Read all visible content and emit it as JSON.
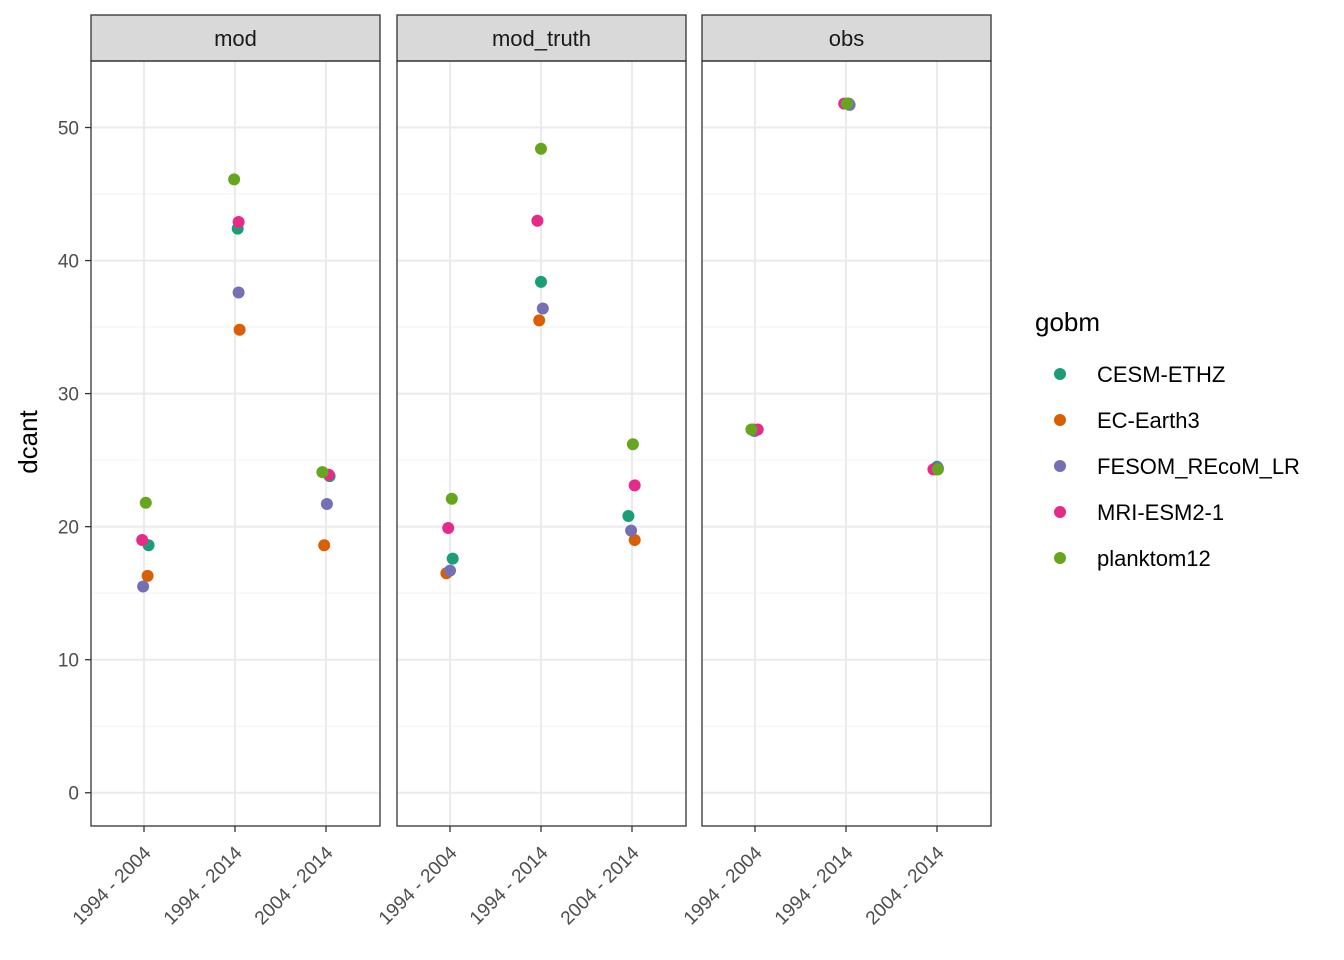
{
  "chart_data": {
    "type": "scatter",
    "facet_by": "panel",
    "panels": [
      "mod",
      "mod_truth",
      "obs"
    ],
    "categories": [
      "1994 - 2004",
      "1994 - 2014",
      "2004 - 2014"
    ],
    "xlabel": "",
    "ylabel": "dcant",
    "ylim": [
      -2.5,
      55
    ],
    "yticks": [
      0,
      10,
      20,
      30,
      40,
      50
    ],
    "grid": true,
    "legend": {
      "title": "gobm",
      "placement": "right"
    },
    "series": [
      {
        "name": "CESM-ETHZ",
        "color": "#1B9E77",
        "points": [
          {
            "panel": "mod",
            "x": "1994 - 2004",
            "y": 18.6,
            "jitter": 0.05
          },
          {
            "panel": "mod",
            "x": "1994 - 2014",
            "y": 42.4,
            "jitter": 0.03
          },
          {
            "panel": "mod",
            "x": "2004 - 2014",
            "y": 23.8,
            "jitter": 0.04
          },
          {
            "panel": "mod_truth",
            "x": "1994 - 2004",
            "y": 17.6,
            "jitter": 0.03
          },
          {
            "panel": "mod_truth",
            "x": "1994 - 2014",
            "y": 38.4,
            "jitter": 0.0
          },
          {
            "panel": "mod_truth",
            "x": "2004 - 2014",
            "y": 20.8,
            "jitter": -0.04
          },
          {
            "panel": "obs",
            "x": "1994 - 2004",
            "y": 27.2,
            "jitter": 0.0
          },
          {
            "panel": "obs",
            "x": "1994 - 2014",
            "y": 51.8,
            "jitter": 0.03
          },
          {
            "panel": "obs",
            "x": "2004 - 2014",
            "y": 24.5,
            "jitter": 0.0
          }
        ]
      },
      {
        "name": "EC-Earth3",
        "color": "#D95F02",
        "points": [
          {
            "panel": "mod",
            "x": "1994 - 2004",
            "y": 16.3,
            "jitter": 0.04
          },
          {
            "panel": "mod",
            "x": "1994 - 2014",
            "y": 34.8,
            "jitter": 0.05
          },
          {
            "panel": "mod",
            "x": "2004 - 2014",
            "y": 18.6,
            "jitter": -0.02
          },
          {
            "panel": "mod_truth",
            "x": "1994 - 2004",
            "y": 16.5,
            "jitter": -0.04
          },
          {
            "panel": "mod_truth",
            "x": "1994 - 2014",
            "y": 35.5,
            "jitter": -0.02
          },
          {
            "panel": "mod_truth",
            "x": "2004 - 2014",
            "y": 19.0,
            "jitter": 0.03
          },
          {
            "panel": "obs",
            "x": "1994 - 2004",
            "y": 27.3,
            "jitter": -0.02
          },
          {
            "panel": "obs",
            "x": "1994 - 2014",
            "y": 51.8,
            "jitter": 0.02
          },
          {
            "panel": "obs",
            "x": "2004 - 2014",
            "y": 24.3,
            "jitter": -0.01
          }
        ]
      },
      {
        "name": "FESOM_REcoM_LR",
        "color": "#7570B3",
        "points": [
          {
            "panel": "mod",
            "x": "1994 - 2004",
            "y": 15.5,
            "jitter": -0.01
          },
          {
            "panel": "mod",
            "x": "1994 - 2014",
            "y": 37.6,
            "jitter": 0.04
          },
          {
            "panel": "mod",
            "x": "2004 - 2014",
            "y": 21.7,
            "jitter": 0.01
          },
          {
            "panel": "mod_truth",
            "x": "1994 - 2004",
            "y": 16.7,
            "jitter": 0.0
          },
          {
            "panel": "mod_truth",
            "x": "1994 - 2014",
            "y": 36.4,
            "jitter": 0.02
          },
          {
            "panel": "mod_truth",
            "x": "2004 - 2014",
            "y": 19.7,
            "jitter": -0.01
          },
          {
            "panel": "obs",
            "x": "1994 - 2004",
            "y": 27.2,
            "jitter": -0.01
          },
          {
            "panel": "obs",
            "x": "1994 - 2014",
            "y": 51.7,
            "jitter": 0.04
          },
          {
            "panel": "obs",
            "x": "2004 - 2014",
            "y": 24.4,
            "jitter": 0.01
          }
        ]
      },
      {
        "name": "MRI-ESM2-1",
        "color": "#E7298A",
        "points": [
          {
            "panel": "mod",
            "x": "1994 - 2004",
            "y": 19.0,
            "jitter": -0.02
          },
          {
            "panel": "mod",
            "x": "1994 - 2014",
            "y": 42.9,
            "jitter": 0.04
          },
          {
            "panel": "mod",
            "x": "2004 - 2014",
            "y": 23.9,
            "jitter": 0.03
          },
          {
            "panel": "mod_truth",
            "x": "1994 - 2004",
            "y": 19.9,
            "jitter": -0.02
          },
          {
            "panel": "mod_truth",
            "x": "1994 - 2014",
            "y": 43.0,
            "jitter": -0.04
          },
          {
            "panel": "mod_truth",
            "x": "2004 - 2014",
            "y": 23.1,
            "jitter": 0.03
          },
          {
            "panel": "obs",
            "x": "1994 - 2004",
            "y": 27.3,
            "jitter": 0.03
          },
          {
            "panel": "obs",
            "x": "1994 - 2014",
            "y": 51.8,
            "jitter": -0.02
          },
          {
            "panel": "obs",
            "x": "2004 - 2014",
            "y": 24.3,
            "jitter": -0.04
          }
        ]
      },
      {
        "name": "planktom12",
        "color": "#66A61E",
        "points": [
          {
            "panel": "mod",
            "x": "1994 - 2004",
            "y": 21.8,
            "jitter": 0.02
          },
          {
            "panel": "mod",
            "x": "1994 - 2014",
            "y": 46.1,
            "jitter": -0.01
          },
          {
            "panel": "mod",
            "x": "2004 - 2014",
            "y": 24.1,
            "jitter": -0.04
          },
          {
            "panel": "mod_truth",
            "x": "1994 - 2004",
            "y": 22.1,
            "jitter": 0.02
          },
          {
            "panel": "mod_truth",
            "x": "1994 - 2014",
            "y": 48.4,
            "jitter": 0.0
          },
          {
            "panel": "mod_truth",
            "x": "2004 - 2014",
            "y": 26.2,
            "jitter": 0.01
          },
          {
            "panel": "obs",
            "x": "1994 - 2004",
            "y": 27.3,
            "jitter": -0.04
          },
          {
            "panel": "obs",
            "x": "1994 - 2014",
            "y": 51.8,
            "jitter": 0.01
          },
          {
            "panel": "obs",
            "x": "2004 - 2014",
            "y": 24.3,
            "jitter": 0.01
          }
        ]
      }
    ]
  }
}
